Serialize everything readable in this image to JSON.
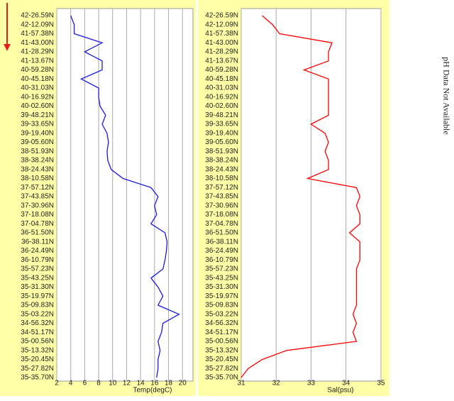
{
  "chart_data": [
    {
      "type": "line",
      "orientation": "horizontal",
      "x_label": "Temp(degC)",
      "color": "#1a1adf",
      "categories": [
        "42-26.59N",
        "42-12.09N",
        "41-57.38N",
        "41-43.00N",
        "41-28.29N",
        "41-13.67N",
        "40-59.28N",
        "40-45.18N",
        "40-31.03N",
        "40-16.92N",
        "40-02.60N",
        "39-48.21N",
        "39-33.65N",
        "39-19.40N",
        "39-05.60N",
        "38-51.93N",
        "38-38.24N",
        "38-24.43N",
        "38-10.58N",
        "37-57.12N",
        "37-43.85N",
        "37-30.96N",
        "37-18.08N",
        "37-04.78N",
        "36-51.50N",
        "36-38.11N",
        "36-24.49N",
        "36-10.79N",
        "35-57.23N",
        "35-43.25N",
        "35-31.30N",
        "35-19.97N",
        "35-09.83N",
        "35-03.22N",
        "34-56.32N",
        "34-51.17N",
        "35-00.56N",
        "35-13.32N",
        "35-20.45N",
        "35-27.82N",
        "35-35.70N"
      ],
      "values": [
        4,
        4.5,
        4.5,
        8.5,
        6,
        8.5,
        8.5,
        5.5,
        8,
        8,
        8.2,
        9,
        8.5,
        9.2,
        9.4,
        9.2,
        9.3,
        9.8,
        11.5,
        15.5,
        16.5,
        16,
        16.3,
        15.5,
        17.5,
        17.8,
        17.7,
        17.5,
        17.2,
        15.5,
        16.5,
        17.2,
        16.5,
        19.5,
        17.2,
        17,
        16.5,
        16.8,
        16.5,
        16.5,
        16.3
      ],
      "xlim": [
        2,
        21.5
      ],
      "xticks": [
        2,
        4,
        6,
        8,
        10,
        12,
        14,
        16,
        18,
        20
      ],
      "grid": true
    },
    {
      "type": "line",
      "orientation": "horizontal",
      "x_label": "Sal(psu)",
      "color": "#ff0000",
      "categories": [
        "42-26.59N",
        "42-12.09N",
        "41-57.38N",
        "41-43.00N",
        "41-28.29N",
        "41-13.67N",
        "40-59.28N",
        "40-45.18N",
        "40-31.03N",
        "40-16.92N",
        "40-02.60N",
        "39-48.21N",
        "39-33.65N",
        "39-19.40N",
        "39-05.60N",
        "38-51.93N",
        "38-38.24N",
        "38-24.43N",
        "38-10.58N",
        "37-57.12N",
        "37-43.85N",
        "37-30.96N",
        "37-18.08N",
        "37-04.78N",
        "36-51.50N",
        "36-38.11N",
        "36-24.49N",
        "36-10.79N",
        "35-57.23N",
        "35-43.25N",
        "35-31.30N",
        "35-19.97N",
        "35-09.83N",
        "35-03.22N",
        "34-56.32N",
        "34-51.17N",
        "35-00.56N",
        "35-13.32N",
        "35-20.45N",
        "35-27.82N",
        "35-35.70N"
      ],
      "values": [
        31.6,
        31.9,
        32.1,
        33.6,
        33.5,
        33.5,
        32.8,
        33.5,
        33.5,
        33.5,
        33.5,
        33.5,
        33.0,
        33.4,
        33.5,
        33.4,
        33.5,
        33.5,
        32.9,
        34.3,
        34.4,
        34.3,
        34.4,
        34.4,
        34.1,
        34.4,
        34.4,
        34.4,
        34.3,
        34.3,
        34.3,
        34.3,
        34.3,
        34.2,
        34.3,
        34.2,
        34.3,
        32.3,
        31.6,
        31.2,
        31.0
      ],
      "xlim": [
        31,
        35
      ],
      "xticks": [
        31,
        32,
        33,
        34,
        35
      ],
      "grid": true
    }
  ],
  "annotation": "pH Data Not Available"
}
